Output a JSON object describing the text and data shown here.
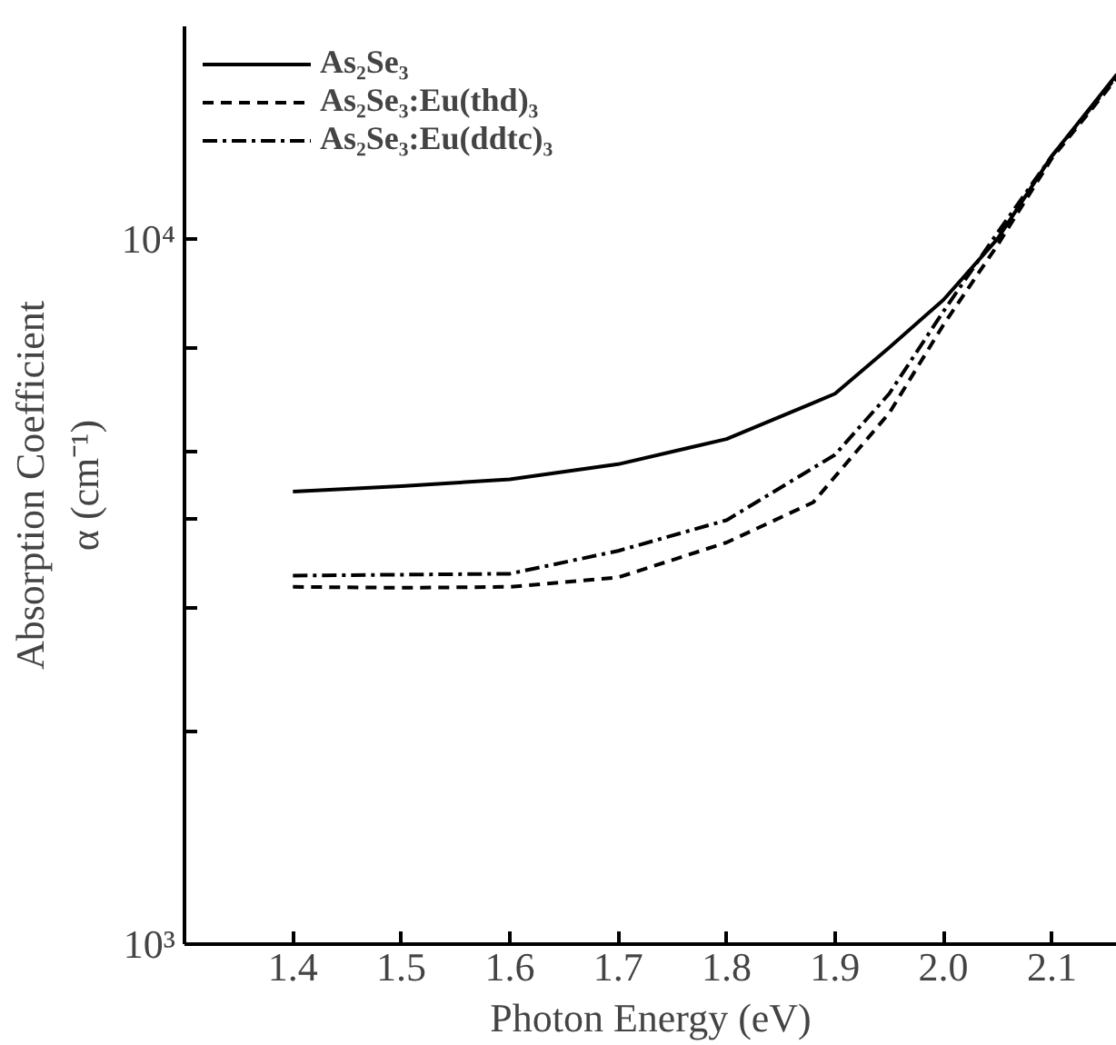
{
  "chart_data": {
    "type": "line",
    "xlabel": "Photon Energy (eV)",
    "ylabel": "Absorption Coefficient\nα (cm⁻¹)",
    "log": "y",
    "xlim": [
      1.3,
      2.16
    ],
    "ylim": [
      1000,
      20000
    ],
    "xticks": [
      1.4,
      1.5,
      1.6,
      {
        "value": 1.7,
        "label": "1.7"
      },
      1.8,
      1.9,
      {
        "value": 2.0,
        "label": "2.0"
      },
      2.1
    ],
    "yticks": [
      {
        "value": 1000,
        "label": "10³"
      },
      {
        "value": 2000,
        "label": null
      },
      {
        "value": 3000,
        "label": null
      },
      {
        "value": 4000,
        "label": null
      },
      {
        "value": 5000,
        "label": null
      },
      {
        "value": 7000,
        "label": null
      },
      {
        "value": 10000,
        "label": "10⁴"
      }
    ],
    "grid": false,
    "legend": "top left",
    "series": [
      {
        "name": "As₂Se₃",
        "color": "#000000",
        "line_style": "solid",
        "x": [
          1.4,
          1.5,
          1.6,
          1.7,
          1.8,
          1.88,
          1.9,
          1.95,
          2.0,
          2.05,
          2.1,
          2.16
        ],
        "values": [
          4380,
          4460,
          4560,
          4790,
          5200,
          5850,
          6030,
          7010,
          8190,
          10000,
          13100,
          17100
        ]
      },
      {
        "name": "As₂Se₃:Eu(thd)₃",
        "color": "#000000",
        "line_style": "dashed",
        "x": [
          1.4,
          1.5,
          1.6,
          1.7,
          1.8,
          1.88,
          1.9,
          1.95,
          2.0,
          2.05,
          2.1,
          2.16
        ],
        "values": [
          3210,
          3200,
          3210,
          3310,
          3710,
          4230,
          4600,
          5660,
          7550,
          9800,
          13000,
          16900
        ]
      },
      {
        "name": "As₂Se₃:Eu(ddtc)₃",
        "color": "#000000",
        "line_style": "dashdot",
        "x": [
          1.4,
          1.5,
          1.6,
          1.7,
          1.8,
          1.9,
          1.95,
          2.0,
          2.05,
          2.1,
          2.16
        ],
        "values": [
          3330,
          3340,
          3350,
          3610,
          3990,
          4940,
          6030,
          7890,
          10200,
          13100,
          17000
        ]
      }
    ]
  }
}
